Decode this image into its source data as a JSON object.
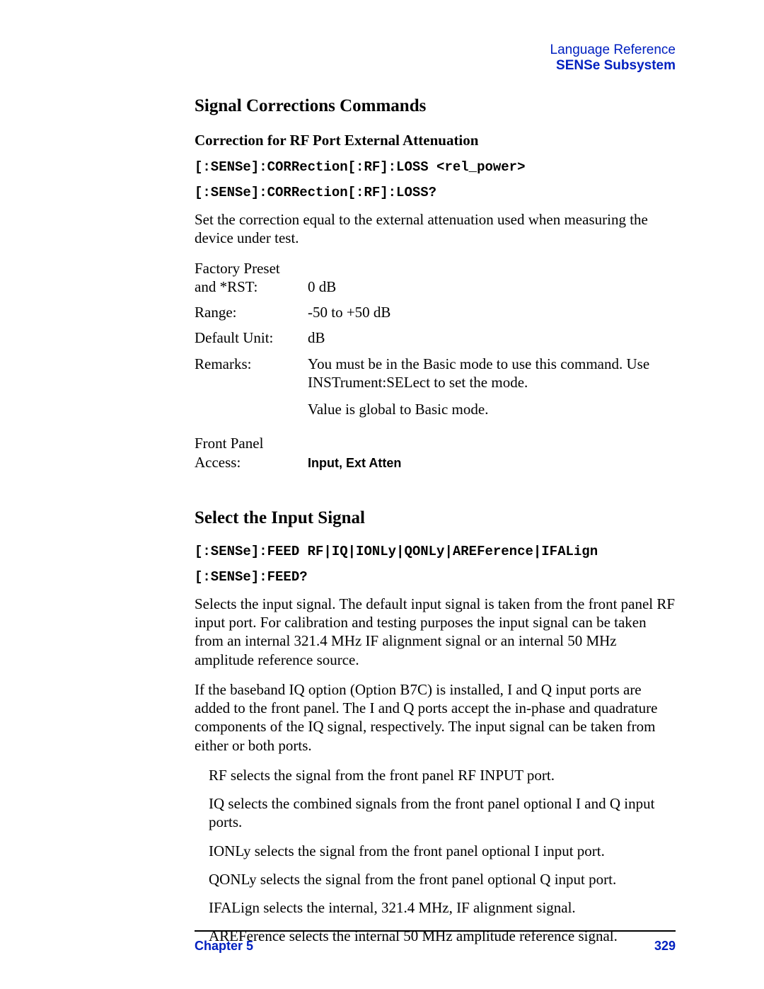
{
  "header": {
    "line1": "Language Reference",
    "line2": "SENSe Subsystem"
  },
  "section1": {
    "title": "Signal Corrections Commands",
    "subtitle": "Correction for RF Port External Attenuation",
    "code1": "[:SENSe]:CORRection[:RF]:LOSS <rel_power>",
    "code2": "[:SENSe]:CORRection[:RF]:LOSS?",
    "desc": "Set the correction equal to the external attenuation used when measuring the device under test.",
    "params": {
      "preset_label": "Factory Preset\nand *RST:",
      "preset_value": "0 dB",
      "range_label": "Range:",
      "range_value": "-50 to +50 dB",
      "unit_label": "Default Unit:",
      "unit_value": "dB",
      "remarks_label": "Remarks:",
      "remarks_value1": "You must be in the Basic mode to use this command. Use INSTrument:SELect to set the mode.",
      "remarks_value2": "Value is global to Basic mode.",
      "access_label": "Front Panel\nAccess:",
      "access_value": "Input, Ext Atten"
    }
  },
  "section2": {
    "title": "Select the Input Signal",
    "code1": "[:SENSe]:FEED RF|IQ|IONLy|QONLy|AREFerence|IFALign",
    "code2": "[:SENSe]:FEED?",
    "para1": "Selects the input signal. The default input signal is taken from the front panel RF input port. For calibration and testing purposes the input signal can be taken from an internal 321.4 MHz IF alignment signal or an internal 50 MHz amplitude reference source.",
    "para2": "If the baseband IQ option (Option B7C) is installed, I and Q input ports are added to the front panel. The I and Q ports accept the in-phase and quadrature components of the IQ signal, respectively. The input signal can be taken from either or both ports.",
    "list": [
      "RF selects the signal from the front panel RF INPUT port.",
      "IQ selects the combined signals from the front panel optional I and Q input ports.",
      "IONLy selects the signal from the front panel optional I input port.",
      "QONLy selects the signal from the front panel optional Q input port.",
      "IFALign selects the internal, 321.4 MHz, IF alignment signal.",
      "AREFerence selects the internal 50 MHz amplitude reference signal."
    ]
  },
  "footer": {
    "chapter": "Chapter 5",
    "page": "329"
  }
}
